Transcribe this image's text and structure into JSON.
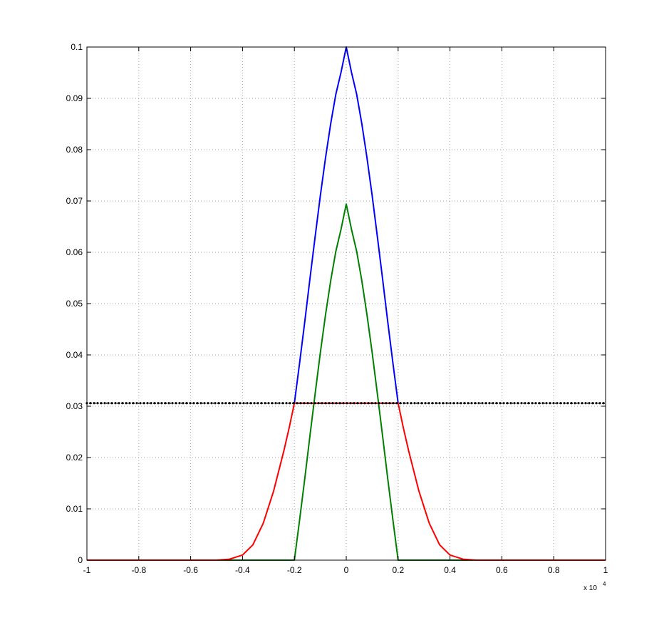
{
  "chart_data": {
    "type": "line",
    "title": "",
    "xlabel": "",
    "ylabel": "",
    "x_multiplier_label": {
      "base": "x 10",
      "exponent": "4"
    },
    "xlim": [
      -1,
      1
    ],
    "ylim": [
      0,
      0.1
    ],
    "grid": true,
    "legend": "none",
    "x_ticks": [
      -1,
      -0.8,
      -0.6,
      -0.4,
      -0.2,
      0,
      0.2,
      0.4,
      0.6,
      0.8,
      1
    ],
    "x_tick_labels": [
      "-1",
      "-0.8",
      "-0.6",
      "-0.4",
      "-0.2",
      "0",
      "0.2",
      "0.4",
      "0.6",
      "0.8",
      "1"
    ],
    "y_ticks": [
      0,
      0.01,
      0.02,
      0.03,
      0.04,
      0.05,
      0.06,
      0.07,
      0.08,
      0.09,
      0.1
    ],
    "y_tick_labels": [
      "0",
      "0.01",
      "0.02",
      "0.03",
      "0.04",
      "0.05",
      "0.06",
      "0.07",
      "0.08",
      "0.09",
      "0.1"
    ],
    "colors": {
      "blue": "#0000ff",
      "green": "#008000",
      "red": "#ff0000",
      "black": "#000000",
      "grid": "#a0a0a0"
    },
    "series": [
      {
        "color": "#0000ff",
        "style": "solid",
        "x": [
          -0.2,
          -0.18,
          -0.16,
          -0.14,
          -0.12,
          -0.1,
          -0.08,
          -0.06,
          -0.04,
          -0.02,
          0,
          0.02,
          0.04,
          0.06,
          0.08,
          0.1,
          0.12,
          0.14,
          0.16,
          0.18,
          0.2
        ],
        "y": [
          0.0306,
          0.0384,
          0.0465,
          0.0548,
          0.063,
          0.071,
          0.0784,
          0.0851,
          0.0908,
          0.0951,
          0.1,
          0.0951,
          0.0908,
          0.0851,
          0.0784,
          0.071,
          0.063,
          0.0548,
          0.0465,
          0.0384,
          0.0306
        ]
      },
      {
        "color": "#008000",
        "style": "solid",
        "x": [
          -1,
          -0.2,
          -0.18,
          -0.16,
          -0.14,
          -0.12,
          -0.1,
          -0.08,
          -0.06,
          -0.04,
          -0.02,
          0,
          0.02,
          0.04,
          0.06,
          0.08,
          0.1,
          0.12,
          0.14,
          0.16,
          0.18,
          0.2,
          1
        ],
        "y": [
          0,
          0,
          0.0078,
          0.0159,
          0.0242,
          0.0324,
          0.0404,
          0.0478,
          0.0545,
          0.0602,
          0.0645,
          0.0694,
          0.0645,
          0.0602,
          0.0545,
          0.0478,
          0.0404,
          0.0324,
          0.0242,
          0.0159,
          0.0078,
          0,
          0
        ]
      },
      {
        "color": "#ff0000",
        "style": "solid",
        "x": [
          -1,
          -0.5,
          -0.45,
          -0.4,
          -0.36,
          -0.32,
          -0.28,
          -0.24,
          -0.22,
          -0.2,
          0.2,
          0.22,
          0.24,
          0.28,
          0.32,
          0.36,
          0.4,
          0.45,
          0.5,
          1
        ],
        "y": [
          0,
          0,
          0.0002,
          0.001,
          0.003,
          0.0072,
          0.0135,
          0.0214,
          0.0258,
          0.0306,
          0.0306,
          0.0258,
          0.0214,
          0.0135,
          0.0072,
          0.003,
          0.001,
          0.0002,
          0,
          0
        ]
      },
      {
        "color": "#000000",
        "style": "dotted-markers",
        "x": [
          -1,
          1
        ],
        "y": [
          0.0306,
          0.0306
        ]
      }
    ]
  }
}
